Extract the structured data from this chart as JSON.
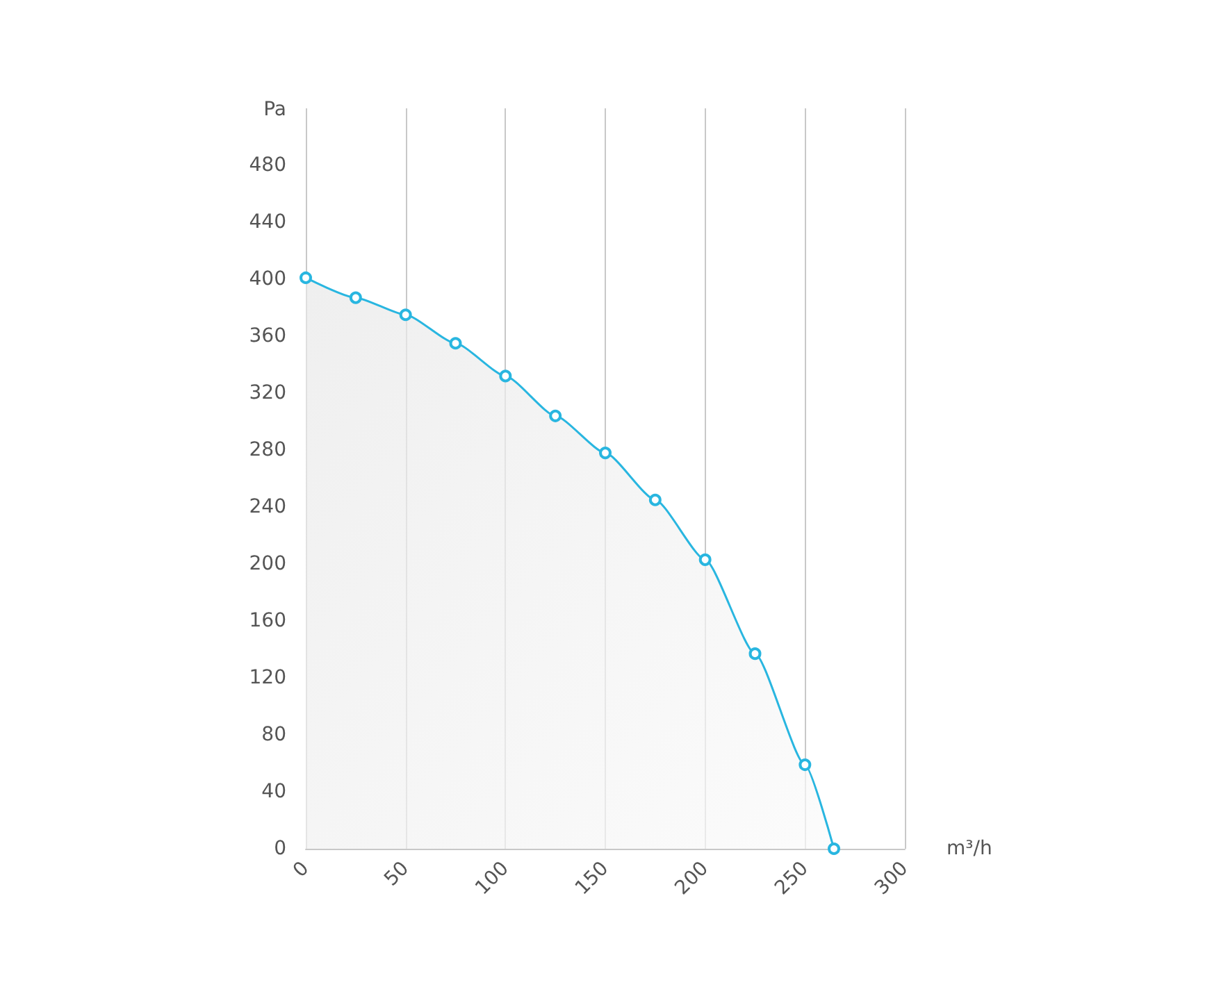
{
  "chart_data": {
    "type": "area",
    "xlabel": "m³/h",
    "ylabel": "Pa",
    "x": [
      0,
      25,
      50,
      75,
      100,
      125,
      150,
      175,
      200,
      225,
      250,
      264.5
    ],
    "series": [
      {
        "color": "#29b6e0",
        "values": [
          401,
          387,
          375,
          355,
          332,
          304,
          278,
          245,
          203,
          137,
          59,
          0
        ]
      }
    ],
    "xlim": [
      0,
      300
    ],
    "xticks": [
      0,
      50,
      100,
      150,
      200,
      250,
      300
    ],
    "ylim": [
      0,
      520
    ],
    "yticks": [
      0,
      40,
      80,
      120,
      160,
      200,
      240,
      280,
      320,
      360,
      400,
      440,
      480
    ],
    "grid": "x",
    "marker": "circle"
  }
}
